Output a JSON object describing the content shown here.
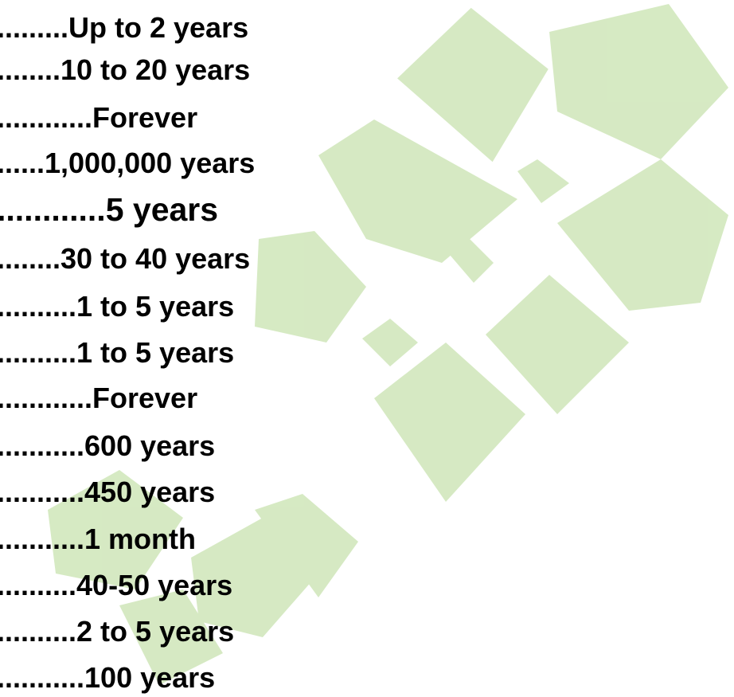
{
  "items": [
    ".........Up to 2 years",
    "........10 to 20 years",
    "............Forever",
    "......1,000,000 years",
    "............5 years",
    "........30 to 40 years",
    "..........1 to 5 years",
    "..........1 to 5 years",
    "............Forever",
    "...........600 years",
    "...........450 years",
    "...........1 month",
    "..........40-50 years",
    "..........2 to 5 years",
    "...........100 years"
  ]
}
